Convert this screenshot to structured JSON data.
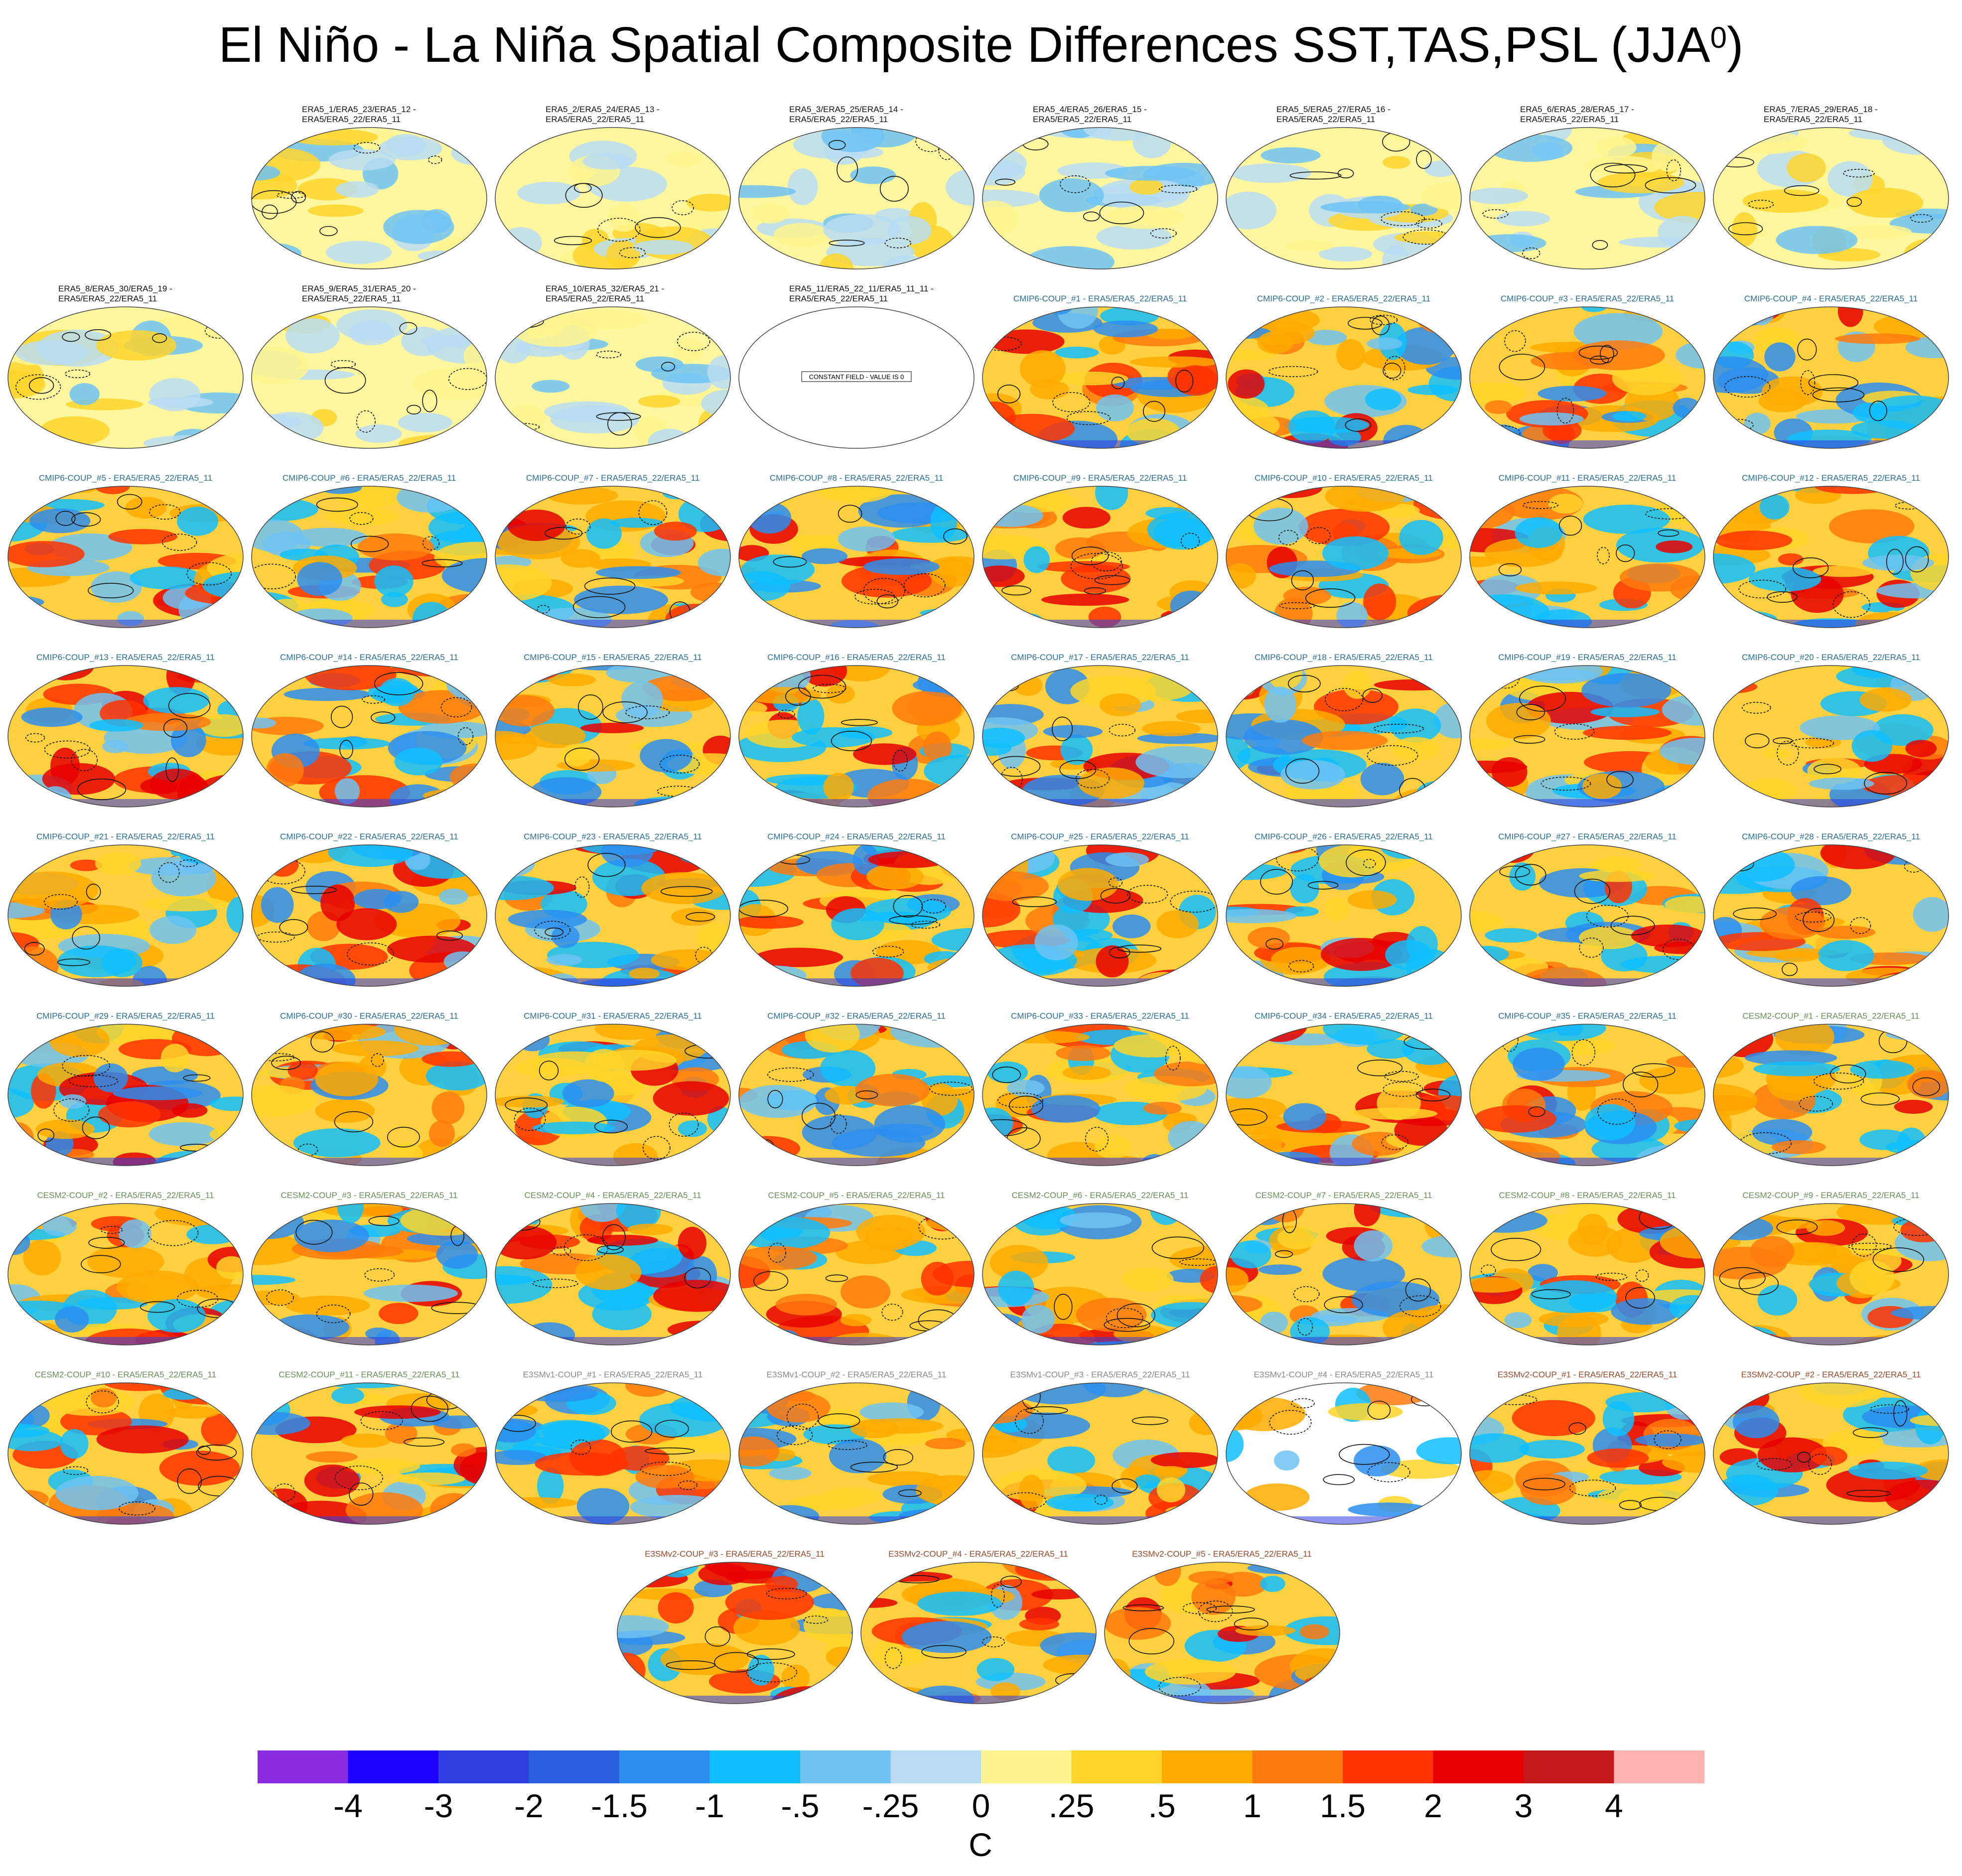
{
  "title_main": "El Niño - La Niña Spatial Composite Differences SST,TAS,PSL (JJA",
  "title_sup": "0",
  "title_close": ")",
  "constant_field_label": "CONSTANT FIELD - VALUE IS 0",
  "group_colors": {
    "obs": "#111111",
    "cmip6": "#2a6e97",
    "cesm2": "#6b8e5a",
    "e3smv1": "#8a8a8a",
    "e3smv2": "#9a4a2a"
  },
  "panels": [
    {
      "row": 0,
      "col": 1,
      "group": "obs",
      "line1": "ERA5_1/ERA5_23/ERA5_12 -",
      "line2": "ERA5/ERA5_22/ERA5_11"
    },
    {
      "row": 0,
      "col": 2,
      "group": "obs",
      "line1": "ERA5_2/ERA5_24/ERA5_13 -",
      "line2": "ERA5/ERA5_22/ERA5_11"
    },
    {
      "row": 0,
      "col": 3,
      "group": "obs",
      "line1": "ERA5_3/ERA5_25/ERA5_14 -",
      "line2": "ERA5/ERA5_22/ERA5_11"
    },
    {
      "row": 0,
      "col": 4,
      "group": "obs",
      "line1": "ERA5_4/ERA5_26/ERA5_15 -",
      "line2": "ERA5/ERA5_22/ERA5_11"
    },
    {
      "row": 0,
      "col": 5,
      "group": "obs",
      "line1": "ERA5_5/ERA5_27/ERA5_16 -",
      "line2": "ERA5/ERA5_22/ERA5_11"
    },
    {
      "row": 0,
      "col": 6,
      "group": "obs",
      "line1": "ERA5_6/ERA5_28/ERA5_17 -",
      "line2": "ERA5/ERA5_22/ERA5_11"
    },
    {
      "row": 0,
      "col": 7,
      "group": "obs",
      "line1": "ERA5_7/ERA5_29/ERA5_18 -",
      "line2": "ERA5/ERA5_22/ERA5_11"
    },
    {
      "row": 1,
      "col": 0,
      "group": "obs",
      "line1": "ERA5_8/ERA5_30/ERA5_19 -",
      "line2": "ERA5/ERA5_22/ERA5_11"
    },
    {
      "row": 1,
      "col": 1,
      "group": "obs",
      "line1": "ERA5_9/ERA5_31/ERA5_20 -",
      "line2": "ERA5/ERA5_22/ERA5_11"
    },
    {
      "row": 1,
      "col": 2,
      "group": "obs",
      "line1": "ERA5_10/ERA5_32/ERA5_21 -",
      "line2": "ERA5/ERA5_22/ERA5_11"
    },
    {
      "row": 1,
      "col": 3,
      "group": "obs",
      "line1": "ERA5_11/ERA5_22_11/ERA5_11_11 -",
      "line2": "ERA5/ERA5_22/ERA5_11",
      "constant": true
    },
    {
      "row": 1,
      "col": 4,
      "group": "cmip6",
      "line1": "CMIP6-COUP_#1 - ERA5/ERA5_22/ERA5_11"
    },
    {
      "row": 1,
      "col": 5,
      "group": "cmip6",
      "line1": "CMIP6-COUP_#2 - ERA5/ERA5_22/ERA5_11"
    },
    {
      "row": 1,
      "col": 6,
      "group": "cmip6",
      "line1": "CMIP6-COUP_#3 - ERA5/ERA5_22/ERA5_11"
    },
    {
      "row": 1,
      "col": 7,
      "group": "cmip6",
      "line1": "CMIP6-COUP_#4 - ERA5/ERA5_22/ERA5_11"
    },
    {
      "row": 2,
      "col": 0,
      "group": "cmip6",
      "line1": "CMIP6-COUP_#5 - ERA5/ERA5_22/ERA5_11"
    },
    {
      "row": 2,
      "col": 1,
      "group": "cmip6",
      "line1": "CMIP6-COUP_#6 - ERA5/ERA5_22/ERA5_11"
    },
    {
      "row": 2,
      "col": 2,
      "group": "cmip6",
      "line1": "CMIP6-COUP_#7 - ERA5/ERA5_22/ERA5_11"
    },
    {
      "row": 2,
      "col": 3,
      "group": "cmip6",
      "line1": "CMIP6-COUP_#8 - ERA5/ERA5_22/ERA5_11"
    },
    {
      "row": 2,
      "col": 4,
      "group": "cmip6",
      "line1": "CMIP6-COUP_#9 - ERA5/ERA5_22/ERA5_11"
    },
    {
      "row": 2,
      "col": 5,
      "group": "cmip6",
      "line1": "CMIP6-COUP_#10 - ERA5/ERA5_22/ERA5_11"
    },
    {
      "row": 2,
      "col": 6,
      "group": "cmip6",
      "line1": "CMIP6-COUP_#11 - ERA5/ERA5_22/ERA5_11"
    },
    {
      "row": 2,
      "col": 7,
      "group": "cmip6",
      "line1": "CMIP6-COUP_#12 - ERA5/ERA5_22/ERA5_11"
    },
    {
      "row": 3,
      "col": 0,
      "group": "cmip6",
      "line1": "CMIP6-COUP_#13 - ERA5/ERA5_22/ERA5_11"
    },
    {
      "row": 3,
      "col": 1,
      "group": "cmip6",
      "line1": "CMIP6-COUP_#14 - ERA5/ERA5_22/ERA5_11"
    },
    {
      "row": 3,
      "col": 2,
      "group": "cmip6",
      "line1": "CMIP6-COUP_#15 - ERA5/ERA5_22/ERA5_11"
    },
    {
      "row": 3,
      "col": 3,
      "group": "cmip6",
      "line1": "CMIP6-COUP_#16 - ERA5/ERA5_22/ERA5_11"
    },
    {
      "row": 3,
      "col": 4,
      "group": "cmip6",
      "line1": "CMIP6-COUP_#17 - ERA5/ERA5_22/ERA5_11"
    },
    {
      "row": 3,
      "col": 5,
      "group": "cmip6",
      "line1": "CMIP6-COUP_#18 - ERA5/ERA5_22/ERA5_11"
    },
    {
      "row": 3,
      "col": 6,
      "group": "cmip6",
      "line1": "CMIP6-COUP_#19 - ERA5/ERA5_22/ERA5_11"
    },
    {
      "row": 3,
      "col": 7,
      "group": "cmip6",
      "line1": "CMIP6-COUP_#20 - ERA5/ERA5_22/ERA5_11"
    },
    {
      "row": 4,
      "col": 0,
      "group": "cmip6",
      "line1": "CMIP6-COUP_#21 - ERA5/ERA5_22/ERA5_11"
    },
    {
      "row": 4,
      "col": 1,
      "group": "cmip6",
      "line1": "CMIP6-COUP_#22 - ERA5/ERA5_22/ERA5_11"
    },
    {
      "row": 4,
      "col": 2,
      "group": "cmip6",
      "line1": "CMIP6-COUP_#23 - ERA5/ERA5_22/ERA5_11"
    },
    {
      "row": 4,
      "col": 3,
      "group": "cmip6",
      "line1": "CMIP6-COUP_#24 - ERA5/ERA5_22/ERA5_11"
    },
    {
      "row": 4,
      "col": 4,
      "group": "cmip6",
      "line1": "CMIP6-COUP_#25 - ERA5/ERA5_22/ERA5_11"
    },
    {
      "row": 4,
      "col": 5,
      "group": "cmip6",
      "line1": "CMIP6-COUP_#26 - ERA5/ERA5_22/ERA5_11"
    },
    {
      "row": 4,
      "col": 6,
      "group": "cmip6",
      "line1": "CMIP6-COUP_#27 - ERA5/ERA5_22/ERA5_11"
    },
    {
      "row": 4,
      "col": 7,
      "group": "cmip6",
      "line1": "CMIP6-COUP_#28 - ERA5/ERA5_22/ERA5_11"
    },
    {
      "row": 5,
      "col": 0,
      "group": "cmip6",
      "line1": "CMIP6-COUP_#29 - ERA5/ERA5_22/ERA5_11"
    },
    {
      "row": 5,
      "col": 1,
      "group": "cmip6",
      "line1": "CMIP6-COUP_#30 - ERA5/ERA5_22/ERA5_11"
    },
    {
      "row": 5,
      "col": 2,
      "group": "cmip6",
      "line1": "CMIP6-COUP_#31 - ERA5/ERA5_22/ERA5_11"
    },
    {
      "row": 5,
      "col": 3,
      "group": "cmip6",
      "line1": "CMIP6-COUP_#32 - ERA5/ERA5_22/ERA5_11"
    },
    {
      "row": 5,
      "col": 4,
      "group": "cmip6",
      "line1": "CMIP6-COUP_#33 - ERA5/ERA5_22/ERA5_11"
    },
    {
      "row": 5,
      "col": 5,
      "group": "cmip6",
      "line1": "CMIP6-COUP_#34 - ERA5/ERA5_22/ERA5_11"
    },
    {
      "row": 5,
      "col": 6,
      "group": "cmip6",
      "line1": "CMIP6-COUP_#35 - ERA5/ERA5_22/ERA5_11"
    },
    {
      "row": 5,
      "col": 7,
      "group": "cesm2",
      "line1": "CESM2-COUP_#1 - ERA5/ERA5_22/ERA5_11"
    },
    {
      "row": 6,
      "col": 0,
      "group": "cesm2",
      "line1": "CESM2-COUP_#2 - ERA5/ERA5_22/ERA5_11"
    },
    {
      "row": 6,
      "col": 1,
      "group": "cesm2",
      "line1": "CESM2-COUP_#3 - ERA5/ERA5_22/ERA5_11"
    },
    {
      "row": 6,
      "col": 2,
      "group": "cesm2",
      "line1": "CESM2-COUP_#4 - ERA5/ERA5_22/ERA5_11"
    },
    {
      "row": 6,
      "col": 3,
      "group": "cesm2",
      "line1": "CESM2-COUP_#5 - ERA5/ERA5_22/ERA5_11"
    },
    {
      "row": 6,
      "col": 4,
      "group": "cesm2",
      "line1": "CESM2-COUP_#6 - ERA5/ERA5_22/ERA5_11"
    },
    {
      "row": 6,
      "col": 5,
      "group": "cesm2",
      "line1": "CESM2-COUP_#7 - ERA5/ERA5_22/ERA5_11"
    },
    {
      "row": 6,
      "col": 6,
      "group": "cesm2",
      "line1": "CESM2-COUP_#8 - ERA5/ERA5_22/ERA5_11"
    },
    {
      "row": 6,
      "col": 7,
      "group": "cesm2",
      "line1": "CESM2-COUP_#9 - ERA5/ERA5_22/ERA5_11"
    },
    {
      "row": 7,
      "col": 0,
      "group": "cesm2",
      "line1": "CESM2-COUP_#10 - ERA5/ERA5_22/ERA5_11"
    },
    {
      "row": 7,
      "col": 1,
      "group": "cesm2",
      "line1": "CESM2-COUP_#11 - ERA5/ERA5_22/ERA5_11"
    },
    {
      "row": 7,
      "col": 2,
      "group": "e3smv1",
      "line1": "E3SMv1-COUP_#1 - ERA5/ERA5_22/ERA5_11"
    },
    {
      "row": 7,
      "col": 3,
      "group": "e3smv1",
      "line1": "E3SMv1-COUP_#2 - ERA5/ERA5_22/ERA5_11"
    },
    {
      "row": 7,
      "col": 4,
      "group": "e3smv1",
      "line1": "E3SMv1-COUP_#3 - ERA5/ERA5_22/ERA5_11"
    },
    {
      "row": 7,
      "col": 5,
      "group": "e3smv1",
      "line1": "E3SMv1-COUP_#4 - ERA5/ERA5_22/ERA5_11",
      "sparse": true
    },
    {
      "row": 7,
      "col": 6,
      "group": "e3smv2",
      "line1": "E3SMv2-COUP_#1 - ERA5/ERA5_22/ERA5_11"
    },
    {
      "row": 7,
      "col": 7,
      "group": "e3smv2",
      "line1": "E3SMv2-COUP_#2 - ERA5/ERA5_22/ERA5_11"
    },
    {
      "row": 8,
      "col": 2.5,
      "group": "e3smv2",
      "line1": "E3SMv2-COUP_#3 - ERA5/ERA5_22/ERA5_11"
    },
    {
      "row": 8,
      "col": 3.5,
      "group": "e3smv2",
      "line1": "E3SMv2-COUP_#4 - ERA5/ERA5_22/ERA5_11"
    },
    {
      "row": 8,
      "col": 4.5,
      "group": "e3smv2",
      "line1": "E3SMv2-COUP_#5 - ERA5/ERA5_22/ERA5_11"
    }
  ],
  "colorbar": {
    "unit": "C",
    "colors": [
      "#8a2be2",
      "#1e00ff",
      "#2f3ee0",
      "#2a5fe0",
      "#2b8ef0",
      "#0fbfff",
      "#6ec3f3",
      "#b8ddf2",
      "#fff58e",
      "#ffd52a",
      "#ffaa00",
      "#ff7a0d",
      "#ff3300",
      "#e60000",
      "#c41a1a",
      "#ffb4b4"
    ],
    "labels": [
      "-4",
      "-3",
      "-2",
      "-1.5",
      "-1",
      "-.5",
      "-.25",
      "0",
      ".25",
      ".5",
      "1",
      "1.5",
      "2",
      "3",
      "4"
    ]
  }
}
